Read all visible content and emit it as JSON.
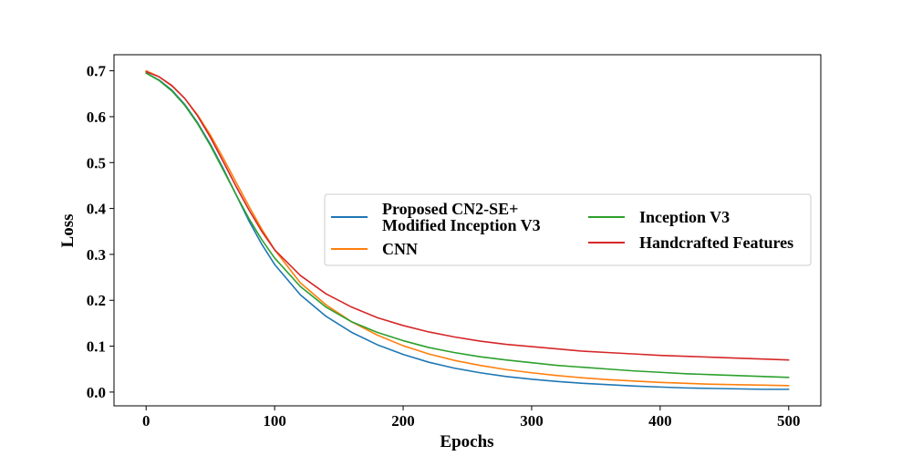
{
  "chart_data": {
    "type": "line",
    "title": "",
    "xlabel": "Epochs",
    "ylabel": "Loss",
    "xlim": [
      -25,
      525
    ],
    "ylim": [
      -0.03,
      0.735
    ],
    "x_ticks": [
      0,
      100,
      200,
      300,
      400,
      500
    ],
    "y_ticks": [
      0.0,
      0.1,
      0.2,
      0.3,
      0.4,
      0.5,
      0.6,
      0.7
    ],
    "x_tick_labels": [
      "0",
      "100",
      "200",
      "300",
      "400",
      "500"
    ],
    "y_tick_labels": [
      "0.0",
      "0.1",
      "0.2",
      "0.3",
      "0.4",
      "0.5",
      "0.6",
      "0.7"
    ],
    "grid": false,
    "legend_position": "center-right",
    "legend_columns": 2,
    "x": [
      0,
      10,
      20,
      30,
      40,
      50,
      60,
      70,
      80,
      90,
      100,
      120,
      140,
      160,
      180,
      200,
      220,
      240,
      260,
      280,
      300,
      320,
      340,
      360,
      380,
      400,
      420,
      440,
      460,
      480,
      500
    ],
    "series": [
      {
        "name": "Proposed CN2-SE+\nModified Inception V3",
        "color": "#1f77b4",
        "values": [
          0.695,
          0.68,
          0.658,
          0.627,
          0.587,
          0.54,
          0.487,
          0.43,
          0.373,
          0.322,
          0.278,
          0.212,
          0.165,
          0.13,
          0.103,
          0.082,
          0.065,
          0.052,
          0.042,
          0.034,
          0.028,
          0.023,
          0.019,
          0.016,
          0.013,
          0.011,
          0.009,
          0.008,
          0.007,
          0.006,
          0.006
        ]
      },
      {
        "name": "CNN",
        "color": "#ff7f0e",
        "values": [
          0.7,
          0.687,
          0.667,
          0.64,
          0.604,
          0.56,
          0.51,
          0.457,
          0.405,
          0.355,
          0.31,
          0.238,
          0.19,
          0.153,
          0.124,
          0.101,
          0.083,
          0.069,
          0.058,
          0.049,
          0.042,
          0.036,
          0.031,
          0.027,
          0.024,
          0.021,
          0.019,
          0.017,
          0.016,
          0.015,
          0.014
        ]
      },
      {
        "name": "Inception V3",
        "color": "#2ca02c",
        "values": [
          0.695,
          0.679,
          0.656,
          0.625,
          0.585,
          0.537,
          0.484,
          0.43,
          0.378,
          0.332,
          0.292,
          0.23,
          0.185,
          0.153,
          0.13,
          0.112,
          0.097,
          0.086,
          0.077,
          0.07,
          0.064,
          0.058,
          0.054,
          0.05,
          0.046,
          0.043,
          0.04,
          0.038,
          0.036,
          0.034,
          0.032
        ]
      },
      {
        "name": "Handcrafted Features",
        "color": "#d62728",
        "values": [
          0.698,
          0.687,
          0.668,
          0.64,
          0.602,
          0.555,
          0.502,
          0.448,
          0.397,
          0.35,
          0.31,
          0.254,
          0.214,
          0.185,
          0.162,
          0.145,
          0.131,
          0.12,
          0.111,
          0.104,
          0.099,
          0.094,
          0.089,
          0.086,
          0.083,
          0.08,
          0.078,
          0.076,
          0.074,
          0.072,
          0.07
        ]
      }
    ]
  }
}
